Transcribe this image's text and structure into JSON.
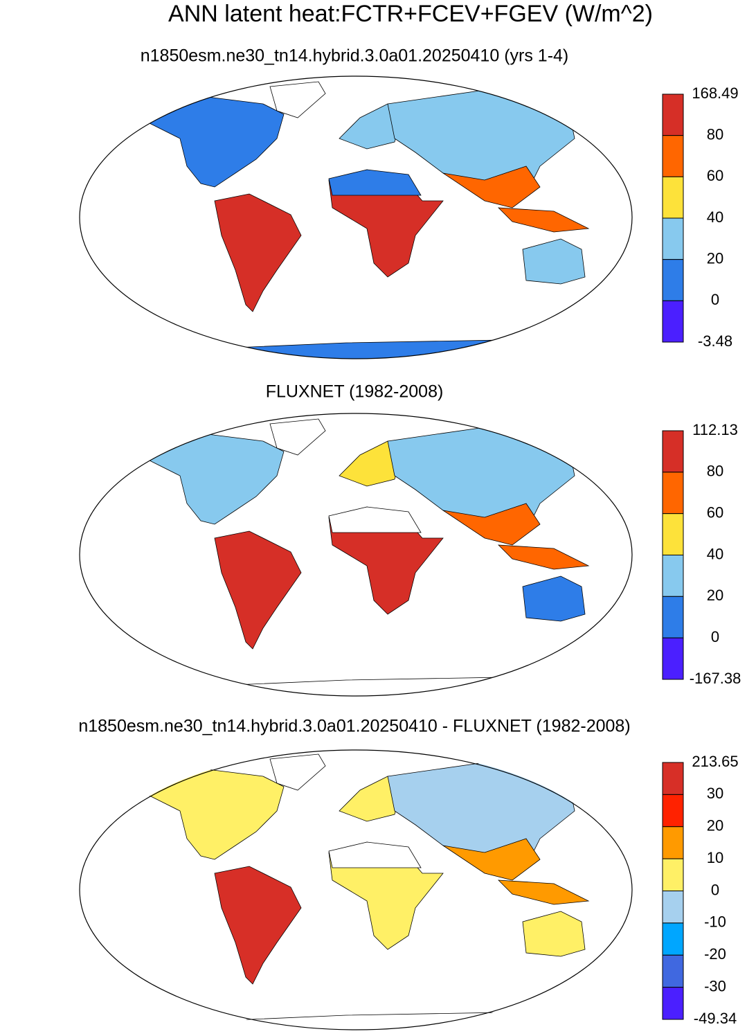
{
  "title": "ANN latent heat:FCTR+FCEV+FGEV (W/m^2)",
  "panels": [
    {
      "subtitle": "n1850esm.ne30_tn14.hybrid.3.0a01.20250410 (yrs 1-4)",
      "colorbar": {
        "labels": [
          168.49,
          80,
          60,
          40,
          20,
          0,
          -3.48
        ],
        "colors": [
          "#d62f27",
          "#ff6600",
          "#fde23a",
          "#87c9ee",
          "#2e7de8",
          "#4b1fff"
        ]
      }
    },
    {
      "subtitle": "FLUXNET (1982-2008)",
      "colorbar": {
        "labels": [
          112.13,
          80,
          60,
          40,
          20,
          0,
          -167.38
        ],
        "colors": [
          "#d62f27",
          "#ff6600",
          "#fde23a",
          "#87c9ee",
          "#2e7de8",
          "#4b1fff"
        ]
      }
    },
    {
      "subtitle": "n1850esm.ne30_tn14.hybrid.3.0a01.20250410 - FLUXNET (1982-2008)",
      "colorbar": {
        "labels": [
          213.65,
          30,
          20,
          10,
          0,
          -10,
          -20,
          -30,
          -49.34
        ],
        "colors": [
          "#d72f27",
          "#ff2200",
          "#ff9a00",
          "#fff066",
          "#a6d0ee",
          "#00a6ff",
          "#4068e0",
          "#4b1fff"
        ]
      }
    }
  ]
}
